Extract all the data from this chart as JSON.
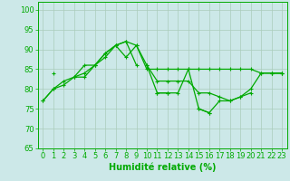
{
  "x": [
    0,
    1,
    2,
    3,
    4,
    5,
    6,
    7,
    8,
    9,
    10,
    11,
    12,
    13,
    14,
    15,
    16,
    17,
    18,
    19,
    20,
    21,
    22,
    23
  ],
  "line1": [
    77,
    80,
    81,
    83,
    83,
    86,
    89,
    91,
    88,
    91,
    85,
    85,
    85,
    85,
    85,
    85,
    85,
    85,
    85,
    85,
    85,
    84,
    84,
    84
  ],
  "line2": [
    77,
    80,
    82,
    83,
    84,
    86,
    89,
    91,
    92,
    91,
    86,
    82,
    82,
    82,
    82,
    79,
    79,
    78,
    77,
    78,
    80,
    84,
    84,
    84
  ],
  "line3": [
    null,
    84,
    null,
    83,
    86,
    86,
    88,
    91,
    92,
    86,
    null,
    79,
    79,
    null,
    null,
    75,
    74,
    77,
    77,
    78,
    79,
    null,
    84,
    84
  ],
  "line4": [
    null,
    null,
    null,
    null,
    null,
    null,
    null,
    null,
    null,
    null,
    86,
    79,
    79,
    79,
    85,
    75,
    74,
    null,
    null,
    null,
    null,
    null,
    null,
    null
  ],
  "bg_color": "#cce8e8",
  "grid_color": "#aaccbb",
  "line_color": "#00aa00",
  "axis_color": "#00aa00",
  "xlabel": "Humidité relative (%)",
  "ylim": [
    65,
    102
  ],
  "yticks": [
    65,
    70,
    75,
    80,
    85,
    90,
    95,
    100
  ],
  "xticks": [
    0,
    1,
    2,
    3,
    4,
    5,
    6,
    7,
    8,
    9,
    10,
    11,
    12,
    13,
    14,
    15,
    16,
    17,
    18,
    19,
    20,
    21,
    22,
    23
  ],
  "marker": "+",
  "markersize": 3.5,
  "linewidth": 0.9,
  "xlabel_fontsize": 7,
  "tick_fontsize": 6
}
